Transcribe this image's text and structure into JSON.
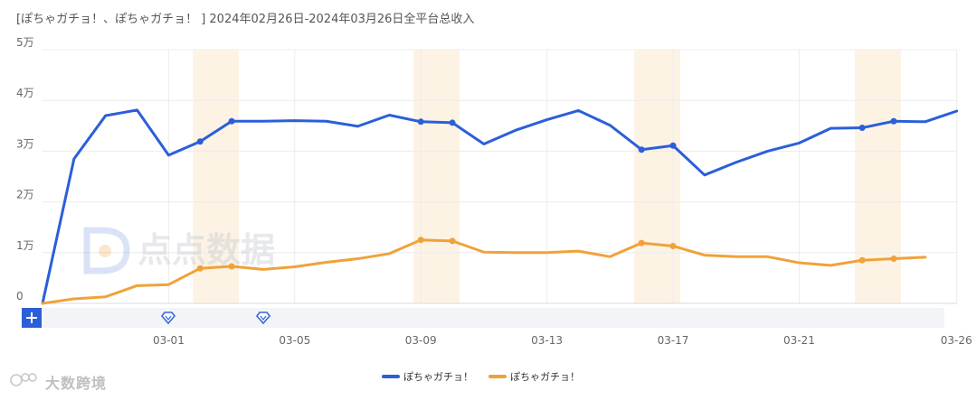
{
  "header": {
    "title": "[ぽちゃガチョ！、ぽちゃガチョ！ ]  2024年02月26日-2024年03月26日全平台总收入"
  },
  "watermarks": {
    "center": "点点数据",
    "corner": "大数跨境"
  },
  "chart_data": {
    "type": "line",
    "x": [
      "02-26",
      "02-27",
      "02-28",
      "02-29",
      "03-01",
      "03-02",
      "03-03",
      "03-04",
      "03-05",
      "03-06",
      "03-07",
      "03-08",
      "03-09",
      "03-10",
      "03-11",
      "03-12",
      "03-13",
      "03-14",
      "03-15",
      "03-16",
      "03-17",
      "03-18",
      "03-19",
      "03-20",
      "03-21",
      "03-22",
      "03-23",
      "03-24",
      "03-25",
      "03-26"
    ],
    "x_tick_labels": [
      "03-01",
      "03-05",
      "03-09",
      "03-13",
      "03-17",
      "03-21",
      "03-26"
    ],
    "y_tick_labels": [
      "0",
      "1万",
      "2万",
      "3万",
      "4万",
      "5万"
    ],
    "ylim": [
      0,
      50000
    ],
    "grid": true,
    "legend_position": "bottom-center",
    "highlight_ranges": [
      [
        "03-02",
        "03-03"
      ],
      [
        "03-09",
        "03-10"
      ],
      [
        "03-16",
        "03-17"
      ],
      [
        "03-23",
        "03-24"
      ]
    ],
    "series": [
      {
        "name": "ぽちゃガチョ！",
        "color": "#2b5fd9",
        "values": [
          0,
          28500,
          37000,
          38100,
          29200,
          31900,
          35900,
          35900,
          36000,
          35900,
          34900,
          37100,
          35800,
          35600,
          31400,
          34100,
          36200,
          38000,
          35100,
          30300,
          31100,
          25300,
          27800,
          30000,
          31600,
          34500,
          34600,
          35900,
          35800,
          37900
        ],
        "markers": [
          "03-02",
          "03-03",
          "03-09",
          "03-10",
          "03-16",
          "03-17",
          "03-23",
          "03-24"
        ]
      },
      {
        "name": "ぽちゃガチョ！",
        "color": "#f0a23a",
        "values": [
          0,
          900,
          1300,
          3500,
          3700,
          6900,
          7300,
          6700,
          7200,
          8100,
          8800,
          9800,
          12500,
          12300,
          10100,
          10000,
          10000,
          10300,
          9200,
          11900,
          11300,
          9500,
          9200,
          9200,
          8000,
          7500,
          8500,
          8800,
          9100,
          null
        ],
        "markers": [
          "03-02",
          "03-03",
          "03-09",
          "03-10",
          "03-16",
          "03-17",
          "03-23",
          "03-24"
        ]
      }
    ]
  }
}
